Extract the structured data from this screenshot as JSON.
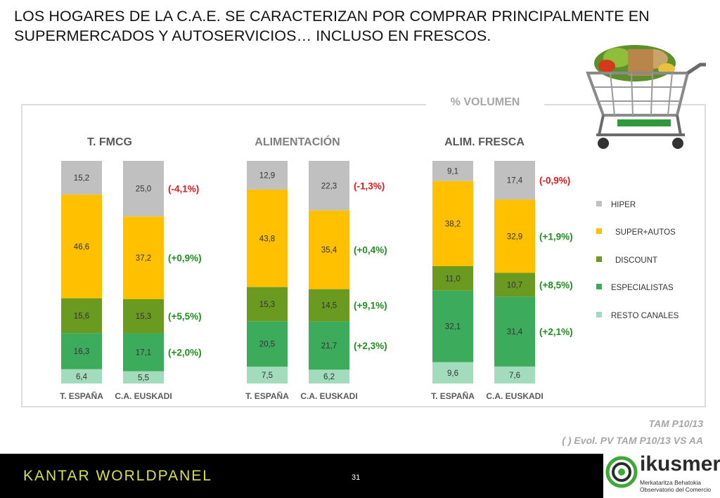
{
  "slide": {
    "title_line1": "LOS HOGARES DE LA C.A.E. SE CARACTERIZAN POR COMPRAR PRINCIPALMENTE EN",
    "title_line2": "SUPERMERCADOS Y AUTOSERVICIOS… INCLUSO EN FRESCOS.",
    "unit_label": "% VOLUMEN",
    "note_period": "TAM P10/13",
    "note_evol": "( ) Evol. PV TAM P10/13 VS AA",
    "page_number": "31",
    "brand": "KANTAR WORLDPANEL",
    "logo_name": "ikusmer",
    "logo_sub1": "Merkataritza Behatokia",
    "logo_sub2": "Observatorio del Comercio"
  },
  "colors": {
    "HIPER": "#c0c0c0",
    "SUPER+AUTOS": "#ffc000",
    "DISCOUNT": "#6a9a1f",
    "ESPECIALISTAS": "#3cab5c",
    "RESTO CANALES": "#a3dcbd",
    "evol_negative": "#e8161b",
    "evol_positive": "#1e8e1e"
  },
  "chart_data": {
    "type": "bar",
    "stacked": true,
    "unit": "% VOLUMEN",
    "legend": [
      "HIPER",
      "SUPER+AUTOS",
      "DISCOUNT",
      "ESPECIALISTAS",
      "RESTO CANALES"
    ],
    "legend_position": "right",
    "groups": [
      {
        "title": "T. FMCG",
        "bars": [
          {
            "label": "T. ESPAÑA",
            "values": {
              "HIPER": "15,2",
              "SUPER+AUTOS": "46,6",
              "DISCOUNT": "15,6",
              "ESPECIALISTAS": "16,3",
              "RESTO CANALES": "6,4"
            }
          },
          {
            "label": "C.A. EUSKADI",
            "values": {
              "HIPER": "25,0",
              "SUPER+AUTOS": "37,2",
              "DISCOUNT": "15,3",
              "ESPECIALISTAS": "17,1",
              "RESTO CANALES": "5,5"
            }
          }
        ],
        "evolutions": {
          "HIPER": "(-4,1%)",
          "SUPER+AUTOS": "(+0,9%)",
          "DISCOUNT": "(+5,5%)",
          "ESPECIALISTAS": "(+2,0%)"
        }
      },
      {
        "title": "ALIMENTACIÓN",
        "bars": [
          {
            "label": "T. ESPAÑA",
            "values": {
              "HIPER": "12,9",
              "SUPER+AUTOS": "43,8",
              "DISCOUNT": "15,3",
              "ESPECIALISTAS": "20,5",
              "RESTO CANALES": "7,5"
            }
          },
          {
            "label": "C.A. EUSKADI",
            "values": {
              "HIPER": "22,3",
              "SUPER+AUTOS": "35,4",
              "DISCOUNT": "14,5",
              "ESPECIALISTAS": "21,7",
              "RESTO CANALES": "6,2"
            }
          }
        ],
        "evolutions": {
          "HIPER": "(-1,3%)",
          "SUPER+AUTOS": "(+0,4%)",
          "DISCOUNT": "(+9,1%)",
          "ESPECIALISTAS": "(+2,3%)"
        }
      },
      {
        "title": "ALIM. FRESCA",
        "bars": [
          {
            "label": "T. ESPAÑA",
            "values": {
              "HIPER": "9,1",
              "SUPER+AUTOS": "38,2",
              "DISCOUNT": "11,0",
              "ESPECIALISTAS": "32,1",
              "RESTO CANALES": "9,6"
            }
          },
          {
            "label": "C.A. EUSKADI",
            "values": {
              "HIPER": "17,4",
              "SUPER+AUTOS": "32,9",
              "DISCOUNT": "10,7",
              "ESPECIALISTAS": "31,4",
              "RESTO CANALES": "7,6"
            }
          }
        ],
        "evolutions": {
          "HIPER": "(-0,9%)",
          "SUPER+AUTOS": "(+1,9%)",
          "DISCOUNT": "(+8,5%)",
          "ESPECIALISTAS": "(+2,1%)"
        }
      }
    ]
  }
}
